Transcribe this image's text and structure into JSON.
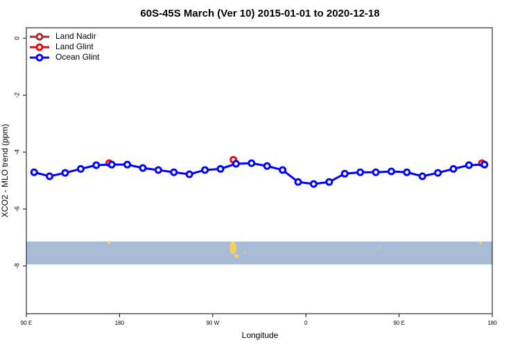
{
  "chart_data": {
    "type": "line",
    "title": "60S-45S March (Ver 10)   2015-01-01 to 2020-12-18",
    "x_label": "Longitude",
    "y_label": "XCO2 - MLO trend (ppm)",
    "xlim": [
      90,
      540
    ],
    "ylim": [
      -9.68,
      0.37
    ],
    "xticks": [
      {
        "value": 90,
        "label": "90 E"
      },
      {
        "value": 180,
        "label": "180"
      },
      {
        "value": 270,
        "label": "90 W"
      },
      {
        "value": 360,
        "label": "0"
      },
      {
        "value": 450,
        "label": "90 E"
      },
      {
        "value": 540,
        "label": "180"
      }
    ],
    "yticks": [
      0,
      -2,
      -4,
      -6,
      -8
    ],
    "legend": "top-left",
    "series": [
      {
        "name": "Land Nadir",
        "color": "#a52a2a",
        "x": [],
        "values": []
      },
      {
        "name": "Land Glint",
        "color": "#ff0000",
        "x": [
          170,
          230,
          290,
          410,
          530
        ],
        "values": [
          -4.39,
          null,
          -4.27,
          null,
          -4.39
        ]
      },
      {
        "name": "Ocean Glint",
        "color": "#0000ff",
        "x": [
          97.5,
          112.5,
          127.5,
          142.5,
          157.5,
          172.5,
          187.5,
          202.5,
          217.5,
          232.5,
          247.5,
          262.5,
          277.5,
          292.5,
          307.5,
          322.5,
          337.5,
          352.5,
          367.5,
          382.5,
          397.5,
          412.5,
          427.5,
          442.5,
          457.5,
          472.5,
          487.5,
          502.5,
          517.5,
          532.5
        ],
        "values": [
          -4.71,
          -4.85,
          -4.73,
          -4.59,
          -4.46,
          -4.44,
          -4.44,
          -4.56,
          -4.63,
          -4.71,
          -4.78,
          -4.63,
          -4.59,
          -4.41,
          -4.39,
          -4.49,
          -4.63,
          -5.05,
          -5.12,
          -5.05,
          -4.76,
          -4.71,
          -4.71,
          -4.68,
          -4.71,
          -4.85,
          -4.73,
          -4.59,
          -4.46,
          -4.44
        ]
      }
    ]
  }
}
